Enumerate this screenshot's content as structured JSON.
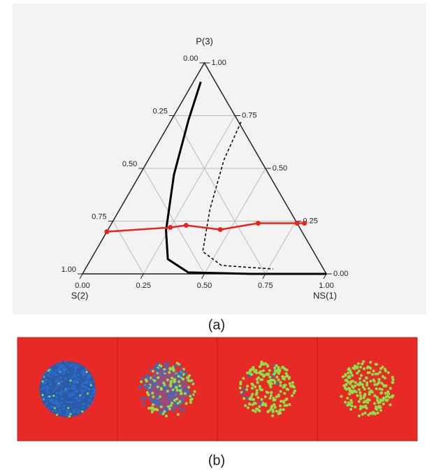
{
  "chart_data": {
    "type": "ternary",
    "top_label": "P(3)",
    "left_label": "S(2)",
    "right_label": "NS(1)",
    "left_ticks": [
      {
        "value": 0,
        "label": "0.00"
      },
      {
        "value": 0.25,
        "label": "0.25"
      },
      {
        "value": 0.5,
        "label": "0.50"
      },
      {
        "value": 0.75,
        "label": "0.75"
      },
      {
        "value": 1,
        "label": "1.00"
      }
    ],
    "right_ticks": [
      {
        "value": 1,
        "label": "1.00"
      },
      {
        "value": 0.75,
        "label": "0.75"
      },
      {
        "value": 0.5,
        "label": "0.50"
      },
      {
        "value": 0.25,
        "label": "0.25"
      },
      {
        "value": 0,
        "label": "0.00"
      }
    ],
    "bottom_ticks": [
      {
        "value": 0,
        "label": "0.00"
      },
      {
        "value": 0.25,
        "label": "0.25"
      },
      {
        "value": 0.5,
        "label": "0.50"
      },
      {
        "value": 0.75,
        "label": "0.75"
      },
      {
        "value": 1,
        "label": "1.00"
      }
    ],
    "grid": true,
    "series": [
      {
        "color": "#000000",
        "style": "solid",
        "ns": [
          0.03,
          0.07,
          0.14,
          0.24,
          0.315,
          0.43,
          0.69,
          1.0
        ],
        "p": [
          0.91,
          0.73,
          0.47,
          0.205,
          0.07,
          0.007,
          0,
          0
        ]
      },
      {
        "color": "#000000",
        "style": "dashed",
        "ns": [
          0.29,
          0.31,
          0.37,
          0.44,
          0.55,
          0.77
        ],
        "p": [
          0.72,
          0.54,
          0.305,
          0.106,
          0.04,
          0.023
        ]
      },
      {
        "color": "#e8231b",
        "style": "markers",
        "ns": [
          0,
          0.25,
          0.31,
          0.46,
          0.6,
          0.76,
          0.79
        ],
        "p": [
          0.2,
          0.22,
          0.23,
          0.21,
          0.24,
          0.24,
          0.24
        ]
      }
    ]
  },
  "captions": [
    "(a)",
    "(b)"
  ]
}
